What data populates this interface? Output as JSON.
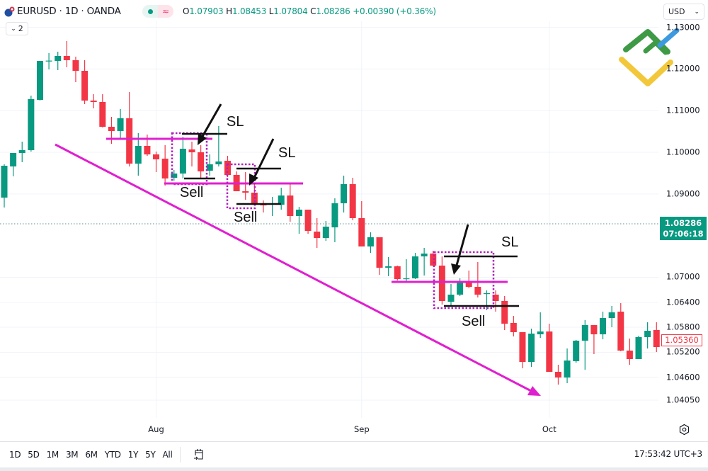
{
  "header": {
    "symbol_title": "EURUSD · 1D · OANDA",
    "status_wave": "≈",
    "ohlc": {
      "open_label": "O",
      "open": "1.07903",
      "high_label": "H",
      "high": "1.08453",
      "low_label": "L",
      "low": "1.07804",
      "close_label": "C",
      "close": "1.08286",
      "change": "+0.00390 (+0.36%)"
    },
    "indicators_count": "2",
    "currency": "USD"
  },
  "price_axis": {
    "ticks": [
      "1.13000",
      "1.12000",
      "1.11000",
      "1.10000",
      "1.09000",
      "1.07000",
      "1.06400",
      "1.05800",
      "1.05200",
      "1.04600",
      "1.04050"
    ],
    "current_price": "1.08286",
    "countdown": "07:06:18",
    "last_visible_price": "1.05360"
  },
  "time_axis": {
    "labels": [
      {
        "label": "Aug",
        "candle_index": 17
      },
      {
        "label": "Sep",
        "candle_index": 40
      },
      {
        "label": "Oct",
        "candle_index": 61
      }
    ]
  },
  "annotations": [
    {
      "sl": "SL",
      "sell": "Sell"
    },
    {
      "sl": "SL",
      "sell": "Sell"
    },
    {
      "sl": "SL",
      "sell": "Sell"
    }
  ],
  "bottom_toolbar": {
    "ranges": [
      "1D",
      "5D",
      "1M",
      "3M",
      "6M",
      "YTD",
      "1Y",
      "5Y",
      "All"
    ],
    "clock": "17:53:42 UTC+3"
  },
  "colors": {
    "up": "#089981",
    "down": "#f23645",
    "annotation_line": "#e01fd0",
    "annotation_black": "#111111"
  },
  "chart_data": {
    "type": "candlestick",
    "title": "EURUSD · 1D · OANDA",
    "ylim": [
      1.0385,
      1.134
    ],
    "yticks": [
      1.13,
      1.12,
      1.11,
      1.1,
      1.09,
      1.07,
      1.064,
      1.058,
      1.052,
      1.046,
      1.0405
    ],
    "grid": true,
    "current_price": 1.08286,
    "fields": [
      "open",
      "high",
      "low",
      "close"
    ],
    "candles": [
      [
        1.08912,
        1.09711,
        1.08674,
        1.09677
      ],
      [
        1.0966,
        1.09983,
        1.09422,
        1.09983
      ],
      [
        1.09983,
        1.10255,
        1.09762,
        1.10051
      ],
      [
        1.10051,
        1.1136,
        1.10017,
        1.11275
      ],
      [
        1.11258,
        1.12193,
        1.11241,
        1.12193
      ],
      [
        1.12193,
        1.1238,
        1.11989,
        1.122
      ],
      [
        1.12193,
        1.12414,
        1.11972,
        1.12312
      ],
      [
        1.12312,
        1.12669,
        1.1204,
        1.1221
      ],
      [
        1.1221,
        1.12295,
        1.11683,
        1.11955
      ],
      [
        1.11955,
        1.1221,
        1.11156,
        1.11241
      ],
      [
        1.11241,
        1.11394,
        1.11054,
        1.11207
      ],
      [
        1.11207,
        1.11394,
        1.10595,
        1.10612
      ],
      [
        1.10612,
        1.1085,
        1.10204,
        1.1051
      ],
      [
        1.1051,
        1.11037,
        1.1034,
        1.10816
      ],
      [
        1.10816,
        1.11445,
        1.0966,
        1.09728
      ],
      [
        1.09728,
        1.10459,
        1.09439,
        1.10153
      ],
      [
        1.10153,
        1.10425,
        1.09915,
        1.09949
      ],
      [
        1.09949,
        1.10017,
        1.09524,
        1.0983
      ],
      [
        1.09847,
        1.1017,
        1.09201,
        1.09371
      ],
      [
        1.09388,
        1.09575,
        1.0932,
        1.0949
      ],
      [
        1.0949,
        1.10374,
        1.09371,
        1.10085
      ],
      [
        1.10068,
        1.10255,
        1.0966,
        1.1
      ],
      [
        1.1,
        1.1017,
        1.09354,
        1.09541
      ],
      [
        1.09558,
        1.09949,
        1.09439,
        1.09711
      ],
      [
        1.09711,
        1.10629,
        1.0966,
        1.09779
      ],
      [
        1.09796,
        1.09915,
        1.09405,
        1.09456
      ],
      [
        1.09456,
        1.09541,
        1.09065,
        1.09065
      ],
      [
        1.09065,
        1.09524,
        1.08861,
        1.09031
      ],
      [
        1.09031,
        1.09235,
        1.08725,
        1.08776
      ],
      [
        1.08776,
        1.08844,
        1.08555,
        1.08725
      ],
      [
        1.08742,
        1.08929,
        1.0847,
        1.08776
      ],
      [
        1.08742,
        1.0915,
        1.08623,
        1.08963
      ],
      [
        1.08963,
        1.09269,
        1.08334,
        1.0847
      ],
      [
        1.0847,
        1.08691,
        1.08045,
        1.08623
      ],
      [
        1.08623,
        1.08623,
        1.08045,
        1.08113
      ],
      [
        1.08096,
        1.08419,
        1.07705,
        1.07943
      ],
      [
        1.07943,
        1.08351,
        1.07875,
        1.08215
      ],
      [
        1.08198,
        1.08895,
        1.07841,
        1.08776
      ],
      [
        1.08776,
        1.09439,
        1.08555,
        1.09235
      ],
      [
        1.09235,
        1.09388,
        1.08368,
        1.08419
      ],
      [
        1.08419,
        1.08827,
        1.07739,
        1.07739
      ],
      [
        1.07739,
        1.08079,
        1.07586,
        1.0796
      ],
      [
        1.0796,
        1.0796,
        1.07059,
        1.07229
      ],
      [
        1.07229,
        1.07484,
        1.07025,
        1.07263
      ],
      [
        1.07263,
        1.0728,
        1.06923,
        1.06957
      ],
      [
        1.06957,
        1.07433,
        1.06906,
        1.06974
      ],
      [
        1.06974,
        1.07586,
        1.06957,
        1.07501
      ],
      [
        1.07501,
        1.07705,
        1.07042,
        1.07569
      ],
      [
        1.07569,
        1.07637,
        1.07263,
        1.0728
      ],
      [
        1.0728,
        1.07501,
        1.06345,
        1.0643
      ],
      [
        1.06413,
        1.06838,
        1.06311,
        1.06583
      ],
      [
        1.06583,
        1.06974,
        1.06549,
        1.06889
      ],
      [
        1.06889,
        1.07161,
        1.06736,
        1.0677
      ],
      [
        1.0677,
        1.07365,
        1.06515,
        1.06583
      ],
      [
        1.066,
        1.06685,
        1.06209,
        1.06617
      ],
      [
        1.06583,
        1.06685,
        1.06175,
        1.0643
      ],
      [
        1.0643,
        1.06549,
        1.05733,
        1.05886
      ],
      [
        1.05903,
        1.06073,
        1.0558,
        1.05682
      ],
      [
        1.05682,
        1.05682,
        1.04815,
        1.04968
      ],
      [
        1.04968,
        1.05767,
        1.04849,
        1.05648
      ],
      [
        1.05631,
        1.06158,
        1.05546,
        1.05699
      ],
      [
        1.05699,
        1.05886,
        1.0473,
        1.0473
      ],
      [
        1.0473,
        1.049,
        1.04424,
        1.04594
      ],
      [
        1.04594,
        1.05291,
        1.04458,
        1.05002
      ],
      [
        1.04985,
        1.05495,
        1.04951,
        1.05478
      ],
      [
        1.05478,
        1.05971,
        1.04781,
        1.05852
      ],
      [
        1.05852,
        1.05852,
        1.05155,
        1.05631
      ],
      [
        1.05631,
        1.06175,
        1.05512,
        1.06022
      ],
      [
        1.06022,
        1.06311,
        1.05801,
        1.06158
      ],
      [
        1.06175,
        1.06379,
        1.05223,
        1.0524
      ],
      [
        1.0524,
        1.05529,
        1.049,
        1.05036
      ],
      [
        1.05036,
        1.05597,
        1.05036,
        1.05563
      ],
      [
        1.05563,
        1.0592,
        1.05291,
        1.05716
      ],
      [
        1.05733,
        1.0592,
        1.05206,
        1.05325
      ]
    ]
  }
}
